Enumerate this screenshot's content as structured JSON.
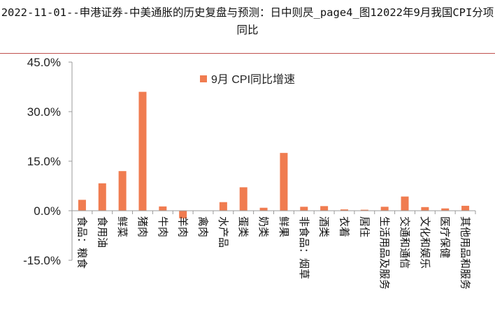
{
  "header": {
    "title": "2022-11-01--申港证券-中美通胀的历史复盘与预测：日中则昃_page4_图12022年9月我国CPI分项同比"
  },
  "chart_data": {
    "type": "bar",
    "categories": [
      "食品：粮食",
      "食用油",
      "鲜菜",
      "猪肉",
      "牛肉",
      "羊肉",
      "禽肉",
      "水产品",
      "蛋类",
      "奶类",
      "鲜果",
      "非食品：烟草",
      "酒类",
      "衣着",
      "居住",
      "生活用品及服务",
      "交通和通信",
      "文化和娱乐",
      "医疗保健",
      "其他用品和服务"
    ],
    "series": [
      {
        "name": "9月 CPI同比增速",
        "values": [
          3.3,
          8.3,
          12.0,
          36.0,
          1.3,
          -2.3,
          0.0,
          2.6,
          7.1,
          0.9,
          17.5,
          1.2,
          1.4,
          0.4,
          0.3,
          1.2,
          4.3,
          1.1,
          0.7,
          1.5
        ]
      }
    ],
    "ylim": [
      -15,
      45
    ],
    "yticks": [
      -15,
      0,
      15,
      30,
      45
    ],
    "ytick_labels": [
      "-15.0%",
      "0.0%",
      "15.0%",
      "30.0%",
      "45.0%"
    ],
    "xlabel": "",
    "ylabel": "",
    "grid": false,
    "legend_position": "top-center",
    "colors": {
      "bar": "#f07c50",
      "axis": "#999999",
      "rule": "#c0504d"
    }
  }
}
